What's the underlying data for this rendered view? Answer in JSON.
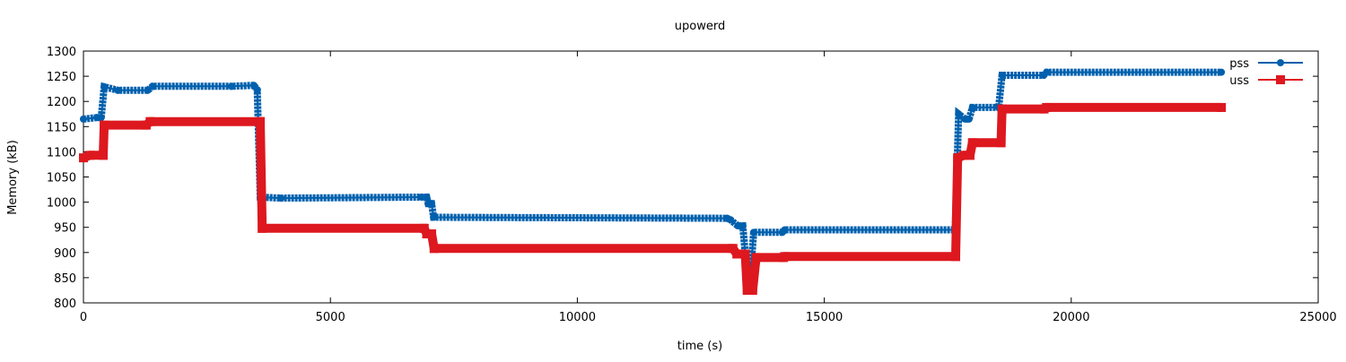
{
  "chart_data": {
    "type": "line",
    "title": "upowerd",
    "xlabel": "time (s)",
    "ylabel": "Memory (kB)",
    "xlim": [
      0,
      25000
    ],
    "ylim": [
      800,
      1300
    ],
    "xticks": [
      0,
      5000,
      10000,
      15000,
      20000,
      25000
    ],
    "yticks": [
      800,
      850,
      900,
      950,
      1000,
      1050,
      1100,
      1150,
      1200,
      1250,
      1300
    ],
    "grid": false,
    "legend_position": "top-right",
    "series": [
      {
        "name": "pss",
        "color": "#0060ad",
        "marker": "circle",
        "points": [
          [
            0,
            1165
          ],
          [
            270,
            1168
          ],
          [
            360,
            1168
          ],
          [
            420,
            1229
          ],
          [
            700,
            1222
          ],
          [
            1300,
            1222
          ],
          [
            1400,
            1230
          ],
          [
            3000,
            1230
          ],
          [
            3450,
            1232
          ],
          [
            3520,
            1223
          ],
          [
            3580,
            1010
          ],
          [
            4000,
            1008
          ],
          [
            6850,
            1010
          ],
          [
            6950,
            1010
          ],
          [
            6980,
            997
          ],
          [
            7050,
            997
          ],
          [
            7090,
            970
          ],
          [
            13030,
            968
          ],
          [
            13100,
            965
          ],
          [
            13250,
            953
          ],
          [
            13350,
            953
          ],
          [
            13420,
            875
          ],
          [
            13520,
            875
          ],
          [
            13570,
            940
          ],
          [
            14150,
            940
          ],
          [
            14200,
            945
          ],
          [
            17650,
            945
          ],
          [
            17720,
            1175
          ],
          [
            17850,
            1165
          ],
          [
            17930,
            1165
          ],
          [
            18000,
            1188
          ],
          [
            18530,
            1188
          ],
          [
            18600,
            1252
          ],
          [
            19440,
            1252
          ],
          [
            19500,
            1258
          ],
          [
            23040,
            1258
          ]
        ]
      },
      {
        "name": "uss",
        "color": "#dd181f",
        "marker": "square",
        "points": [
          [
            0,
            1088
          ],
          [
            130,
            1093
          ],
          [
            400,
            1093
          ],
          [
            420,
            1153
          ],
          [
            1270,
            1153
          ],
          [
            1350,
            1160
          ],
          [
            3580,
            1160
          ],
          [
            3620,
            948
          ],
          [
            6900,
            948
          ],
          [
            6950,
            937
          ],
          [
            7050,
            937
          ],
          [
            7100,
            908
          ],
          [
            13150,
            908
          ],
          [
            13230,
            897
          ],
          [
            13400,
            897
          ],
          [
            13440,
            825
          ],
          [
            13550,
            825
          ],
          [
            13620,
            890
          ],
          [
            14170,
            890
          ],
          [
            14200,
            892
          ],
          [
            17660,
            892
          ],
          [
            17700,
            1088
          ],
          [
            17830,
            1093
          ],
          [
            17950,
            1093
          ],
          [
            18000,
            1118
          ],
          [
            18580,
            1118
          ],
          [
            18600,
            1185
          ],
          [
            19450,
            1185
          ],
          [
            19500,
            1188
          ],
          [
            23040,
            1188
          ]
        ]
      }
    ]
  }
}
